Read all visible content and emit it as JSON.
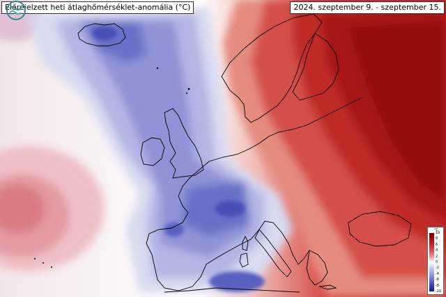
{
  "map": {
    "title": "Előrejelzett heti átlaghőmérséklet-anomália (°C)",
    "period": "2024. szeptember 9. - szeptember 15."
  },
  "legend": {
    "unit": "°C",
    "ticks": [
      "10",
      "8",
      "6",
      "4",
      "2",
      "0",
      "-2",
      "-4",
      "-6",
      "-8",
      "-10"
    ],
    "colors": [
      "#7a0000",
      "#a30e0e",
      "#c0282a",
      "#d5504c",
      "#e8908a",
      "#ffffff",
      "#c7c9ea",
      "#9b9fdc",
      "#6a6fc9",
      "#3a3fae",
      "#18198a"
    ]
  },
  "logo": {
    "name": "wave-logo-icon"
  }
}
